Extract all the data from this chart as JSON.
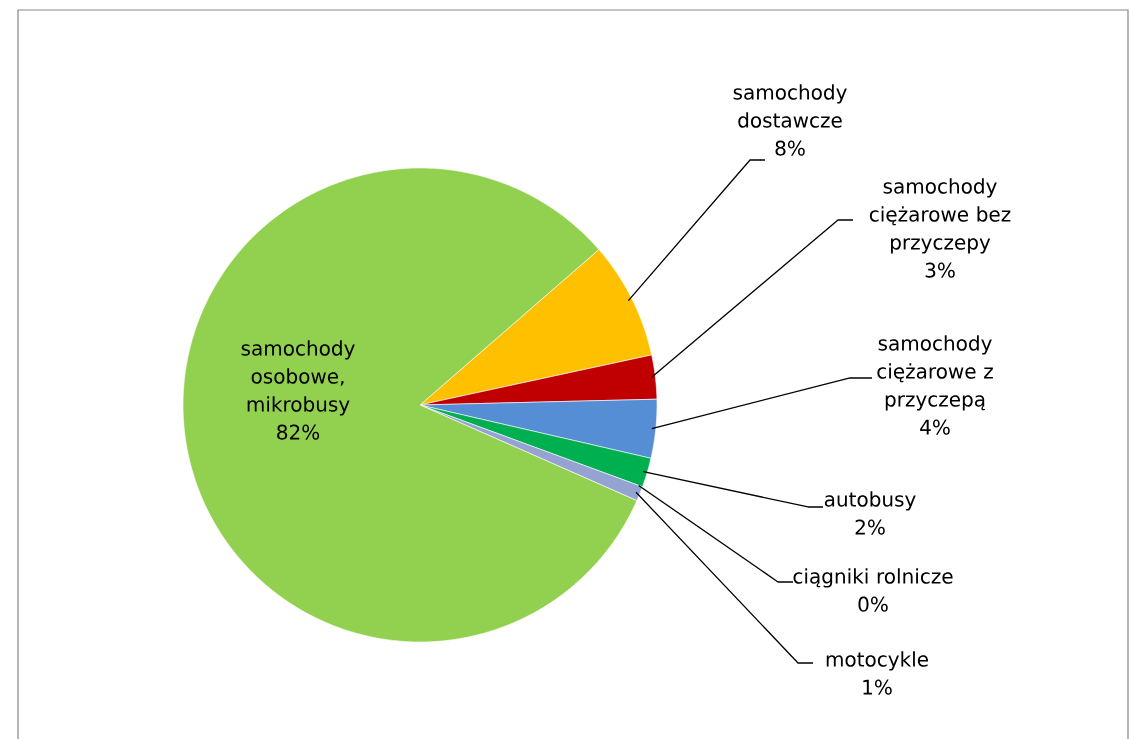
{
  "chart_data": {
    "type": "pie",
    "categories": [
      "samochody dostawcze",
      "samochody ciężarowe bez przyczepy",
      "samochody ciężarowe z przyczepą",
      "autobusy",
      "ciągniki rolnicze",
      "motocykle",
      "samochody osobowe, mikrobusy"
    ],
    "values": [
      8,
      3,
      4,
      2,
      0,
      1,
      82
    ],
    "value_labels": [
      "8%",
      "3%",
      "4%",
      "2%",
      "0%",
      "1%",
      "82%"
    ],
    "colors": [
      "#ffc000",
      "#c00000",
      "#558ed5",
      "#00b050",
      "#f79646",
      "#95a3d3",
      "#92d050"
    ]
  }
}
